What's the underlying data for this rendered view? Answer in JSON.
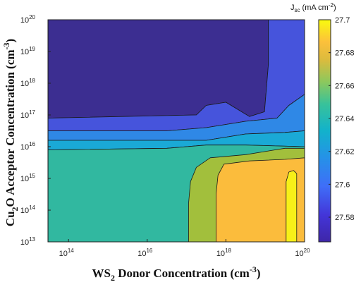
{
  "chart_data": {
    "type": "heatmap",
    "subtype": "filled-contour",
    "title": "",
    "xlabel": {
      "main": "WS",
      "sub": "2",
      "rest": " Donor Concentration (cm",
      "sup": "-3",
      "end": ")"
    },
    "ylabel": {
      "main": "Cu",
      "sub": "2",
      "rest": "O Acceptor Concentration (cm",
      "sup": "-3",
      "end": ")"
    },
    "x_scale": "log",
    "y_scale": "log",
    "xlim": [
      "3e13",
      "1e20"
    ],
    "ylim": [
      "1e13",
      "1e20"
    ],
    "x_ticks": [
      {
        "value": "1e14",
        "base": "10",
        "exp": "14"
      },
      {
        "value": "1e16",
        "base": "10",
        "exp": "16"
      },
      {
        "value": "1e18",
        "base": "10",
        "exp": "18"
      },
      {
        "value": "1e20",
        "base": "10",
        "exp": "20"
      }
    ],
    "y_ticks": [
      {
        "value": "1e13",
        "base": "10",
        "exp": "13"
      },
      {
        "value": "1e14",
        "base": "10",
        "exp": "14"
      },
      {
        "value": "1e15",
        "base": "10",
        "exp": "15"
      },
      {
        "value": "1e16",
        "base": "10",
        "exp": "16"
      },
      {
        "value": "1e17",
        "base": "10",
        "exp": "17"
      },
      {
        "value": "1e18",
        "base": "10",
        "exp": "18"
      },
      {
        "value": "1e19",
        "base": "10",
        "exp": "19"
      },
      {
        "value": "1e20",
        "base": "10",
        "exp": "20"
      }
    ],
    "colorbar": {
      "title": {
        "main": "J",
        "sub": "sc",
        "rest": " (mA cm",
        "sup": "-2",
        "end": ")"
      },
      "range": [
        27.565,
        27.7
      ],
      "ticks": [
        "27.58",
        "27.6",
        "27.62",
        "27.64",
        "27.66",
        "27.68",
        "27.7"
      ],
      "colormap": "parula"
    },
    "contour_regions": [
      {
        "level_jsc": 27.57,
        "color": "#3c2e91",
        "description": "upper-left low-Jsc region",
        "outline": [
          [
            13.48,
            20
          ],
          [
            19.08,
            20
          ],
          [
            19.08,
            18.6
          ],
          [
            18.98,
            17.1
          ],
          [
            18.6,
            16.95
          ],
          [
            18,
            17.4
          ],
          [
            17.5,
            17.3
          ],
          [
            17.25,
            17.0
          ],
          [
            13.48,
            16.9
          ]
        ]
      },
      {
        "level_jsc": 27.585,
        "color": "#4654dc",
        "description": "upper-right blue band",
        "outline": [
          [
            19.08,
            20
          ],
          [
            20,
            20
          ],
          [
            20,
            17.65
          ],
          [
            19.6,
            17.3
          ],
          [
            19.3,
            16.9
          ],
          [
            18.5,
            16.8
          ],
          [
            17.5,
            16.6
          ],
          [
            16.5,
            16.5
          ],
          [
            13.48,
            16.5
          ],
          [
            13.48,
            16.9
          ],
          [
            17.25,
            17.0
          ],
          [
            17.5,
            17.3
          ],
          [
            18,
            17.4
          ],
          [
            18.6,
            16.95
          ],
          [
            18.98,
            17.1
          ],
          [
            19.08,
            18.6
          ]
        ]
      },
      {
        "level_jsc": 27.6,
        "color": "#2f88e6",
        "description": "light blue band",
        "outline": [
          [
            19.6,
            17.3
          ],
          [
            20,
            17.65
          ],
          [
            20,
            16.5
          ],
          [
            19.5,
            16.45
          ],
          [
            18.5,
            16.4
          ],
          [
            17.5,
            16.2
          ],
          [
            16.8,
            16.2
          ],
          [
            13.48,
            16.2
          ],
          [
            13.48,
            16.5
          ],
          [
            16.5,
            16.5
          ],
          [
            17.5,
            16.6
          ],
          [
            18.5,
            16.8
          ],
          [
            19.3,
            16.9
          ]
        ]
      },
      {
        "level_jsc": 27.625,
        "color": "#1aa9d6",
        "description": "cyan band",
        "outline": [
          [
            20,
            16.5
          ],
          [
            20,
            16.0
          ],
          [
            18.5,
            16.05
          ],
          [
            17.5,
            16.05
          ],
          [
            16.5,
            15.95
          ],
          [
            13.48,
            15.9
          ],
          [
            13.48,
            16.2
          ],
          [
            16.8,
            16.2
          ],
          [
            17.5,
            16.2
          ],
          [
            18.5,
            16.4
          ],
          [
            19.5,
            16.45
          ]
        ]
      },
      {
        "level_jsc": 27.64,
        "color": "#31b8a0",
        "description": "green base region",
        "outline": [
          [
            13.48,
            13
          ],
          [
            20,
            13
          ],
          [
            20,
            16.0
          ],
          [
            18.5,
            16.05
          ],
          [
            17.5,
            16.05
          ],
          [
            16.5,
            15.95
          ],
          [
            13.48,
            15.9
          ]
        ]
      },
      {
        "level_jsc": 27.655,
        "color": "#a2bf3c",
        "description": "olive band",
        "outline": [
          [
            17.05,
            13
          ],
          [
            20,
            13
          ],
          [
            20,
            15.95
          ],
          [
            19.5,
            15.95
          ],
          [
            18.5,
            15.75
          ],
          [
            17.6,
            15.65
          ],
          [
            17.25,
            15.35
          ],
          [
            17.1,
            14.9
          ],
          [
            17.05,
            14.2
          ]
        ]
      },
      {
        "level_jsc": 27.675,
        "color": "#fbbc3c",
        "description": "orange region",
        "outline": [
          [
            17.75,
            13
          ],
          [
            20,
            13
          ],
          [
            20,
            15.65
          ],
          [
            19.5,
            15.6
          ],
          [
            18.6,
            15.55
          ],
          [
            17.95,
            15.45
          ],
          [
            17.8,
            15.1
          ],
          [
            17.75,
            14.5
          ]
        ]
      },
      {
        "level_jsc": 27.695,
        "color": "#f7f018",
        "description": "yellow maximum band",
        "outline": [
          [
            19.53,
            13
          ],
          [
            19.8,
            13
          ],
          [
            19.8,
            15.15
          ],
          [
            19.72,
            15.25
          ],
          [
            19.6,
            15.2
          ],
          [
            19.53,
            14.9
          ]
        ]
      }
    ]
  }
}
